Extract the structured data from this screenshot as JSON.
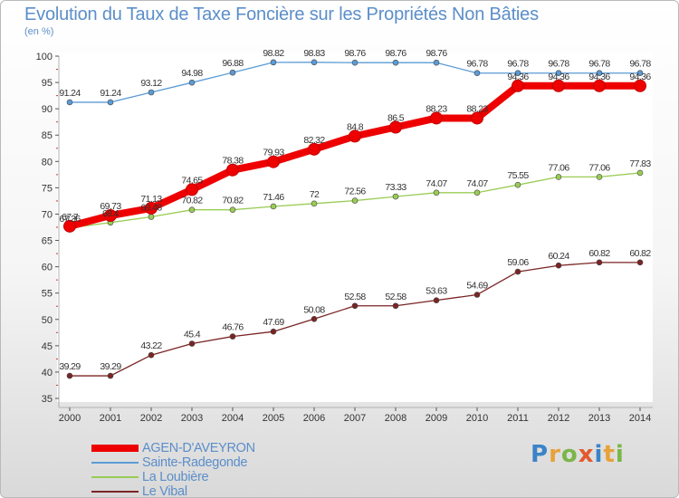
{
  "title": "Evolution du Taux de Taxe Foncière sur les Propriétés Non Bâties",
  "unit": "(en %)",
  "logo": {
    "text": "Proxiti",
    "colors": [
      "#3b83c7",
      "#e7a23a",
      "#7ab648",
      "#e25a2c",
      "#3b83c7",
      "#e7a23a",
      "#7ab648"
    ]
  },
  "chart_data": {
    "type": "line",
    "title": "Evolution du Taux de Taxe Foncière sur les Propriétés Non Bâties",
    "ylabel": "(en %)",
    "xlabel": "",
    "x": [
      "2000",
      "2001",
      "2002",
      "2003",
      "2004",
      "2005",
      "2006",
      "2007",
      "2008",
      "2009",
      "2010",
      "2011",
      "2012",
      "2013",
      "2014"
    ],
    "ylim": [
      35,
      100
    ],
    "yticks": [
      35,
      40,
      45,
      50,
      55,
      60,
      65,
      70,
      75,
      80,
      85,
      90,
      95,
      100
    ],
    "grid": false,
    "legend_position": "bottom-left",
    "series": [
      {
        "name": "AGEN-D'AVEYRON",
        "color": "#ee0000",
        "style": "thick",
        "values": [
          67.7,
          69.73,
          71.13,
          74.65,
          78.38,
          79.93,
          82.32,
          84.8,
          86.5,
          88.23,
          88.23,
          94.36,
          94.36,
          94.36,
          94.36
        ],
        "labels": [
          "67.7",
          "69.73",
          "71.13",
          "74.65",
          "78.38",
          "79.93",
          "82.32",
          "84.8",
          "86.5",
          "88.23",
          "88.23",
          "94.36",
          "94.36",
          "94.36",
          "94.36"
        ]
      },
      {
        "name": "Sainte-Radegonde",
        "color": "#5b9bd5",
        "style": "thin",
        "values": [
          91.24,
          91.24,
          93.12,
          94.98,
          96.88,
          98.82,
          98.83,
          98.76,
          98.76,
          98.76,
          96.78,
          96.78,
          96.78,
          96.78,
          96.78
        ],
        "labels": [
          "91.24",
          "91.24",
          "93.12",
          "94.98",
          "96.88",
          "98.82",
          "98.83",
          "98.76",
          "98.76",
          "98.76",
          "96.78",
          "96.78",
          "96.78",
          "96.78",
          "96.78"
        ]
      },
      {
        "name": "La Loubière",
        "color": "#99cc55",
        "style": "thin",
        "values": [
          67.36,
          68.4,
          69.48,
          70.82,
          70.82,
          71.46,
          72,
          72.56,
          73.33,
          74.07,
          74.07,
          75.55,
          77.06,
          77.06,
          77.83
        ],
        "labels": [
          "67.36",
          "68.4",
          "69.48",
          "70.82",
          "70.82",
          "71.46",
          "72",
          "72.56",
          "73.33",
          "74.07",
          "74.07",
          "75.55",
          "77.06",
          "77.06",
          "77.83"
        ]
      },
      {
        "name": "Le Vibal",
        "color": "#7b2424",
        "style": "thin",
        "values": [
          39.29,
          39.29,
          43.22,
          45.4,
          46.76,
          47.69,
          50.08,
          52.58,
          52.58,
          53.63,
          54.69,
          59.06,
          60.24,
          60.82,
          60.82
        ],
        "labels": [
          "39.29",
          "39.29",
          "43.22",
          "45.4",
          "46.76",
          "47.69",
          "50.08",
          "52.58",
          "52.58",
          "53.63",
          "54.69",
          "59.06",
          "60.24",
          "60.82",
          "60.82"
        ]
      }
    ]
  }
}
